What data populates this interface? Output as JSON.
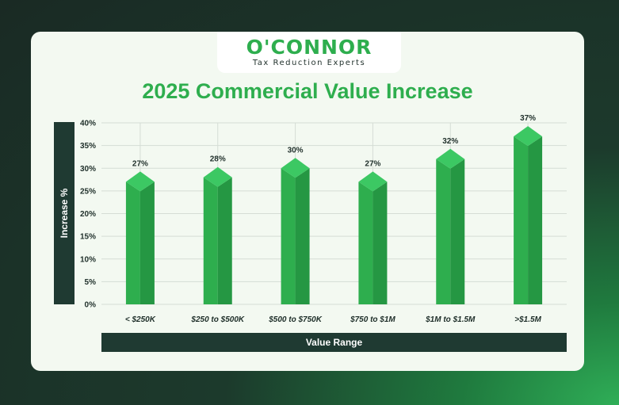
{
  "logo": {
    "name": "O'CONNOR",
    "tagline": "Tax Reduction Experts"
  },
  "colors": {
    "accent": "#2eae4e",
    "bar": "#2eae4e",
    "bar_dark": "#259743",
    "bar_top": "#3cc863",
    "label_bg": "#1f3a32"
  },
  "chart_data": {
    "type": "bar",
    "title": "2025 Commercial Value Increase",
    "xlabel": "Value Range",
    "ylabel": "Increase %",
    "categories": [
      "< $250K",
      "$250 to $500K",
      "$500 to $750K",
      "$750 to $1M",
      "$1M to $1.5M",
      ">$1.5M"
    ],
    "values": [
      27,
      28,
      30,
      27,
      32,
      37
    ],
    "value_labels": [
      "27%",
      "28%",
      "30%",
      "27%",
      "32%",
      "37%"
    ],
    "ylim": [
      0,
      40
    ],
    "yticks": [
      "0%",
      "5%",
      "10%",
      "15%",
      "20%",
      "25%",
      "30%",
      "35%",
      "40%"
    ],
    "grid": true
  }
}
